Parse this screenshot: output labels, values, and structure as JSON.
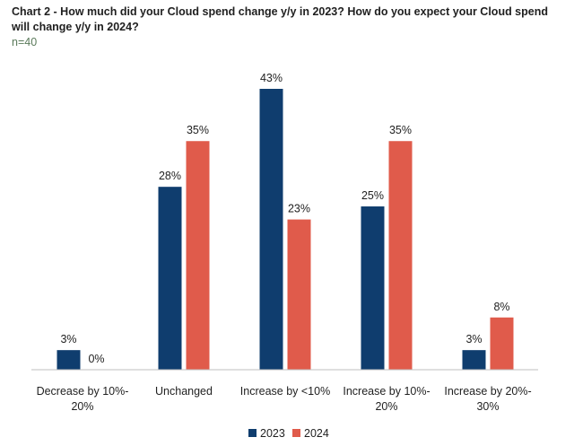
{
  "chart_data": {
    "type": "bar",
    "title": "Chart 2 - How much did your Cloud spend change y/y in 2023? How do you expect your Cloud spend will change y/y in 2024?",
    "subtitle": "n=40",
    "categories": [
      [
        "Decrease by 10%-",
        "20%"
      ],
      [
        "Unchanged"
      ],
      [
        "Increase by <10%"
      ],
      [
        "Increase by 10%-",
        "20%"
      ],
      [
        "Increase by 20%-",
        "30%"
      ]
    ],
    "series": [
      {
        "name": "2023",
        "color": "#0f3d6e",
        "values": [
          3,
          28,
          43,
          25,
          3
        ]
      },
      {
        "name": "2024",
        "color": "#e05b4b",
        "values": [
          0,
          35,
          23,
          35,
          8
        ]
      }
    ],
    "value_suffix": "%",
    "ylim": [
      0,
      43
    ],
    "grid": false,
    "legend": "bottom-center",
    "xlabel": "",
    "ylabel": ""
  }
}
